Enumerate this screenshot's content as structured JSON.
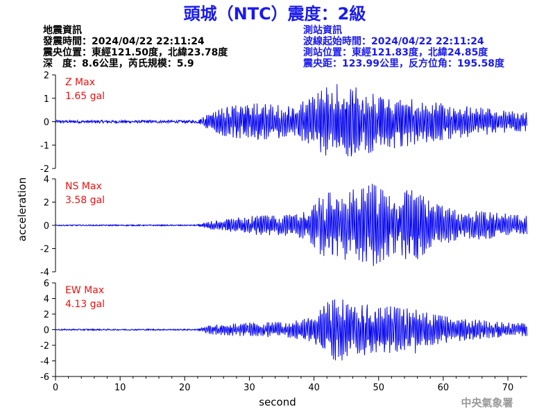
{
  "header": {
    "title": "頭城（NTC）震度：2級",
    "quake": {
      "heading": "地震資訊",
      "time": "發震時間：2024/04/22 22:11:24",
      "location": "震央位置：東經121.50度，北緯23.78度",
      "depth_magnitude": "深　度：8.6公里，芮氏規模：5.9"
    },
    "station": {
      "heading": "測站資訊",
      "onset": "波線起始時間：2024/04/22 22:11:24",
      "location": "測站位置：東經121.83度，北緯24.85度",
      "distance": "震央距：123.99公里，反方位角：195.58度"
    }
  },
  "footer": {
    "agency": "中央氣象署"
  },
  "colors": {
    "title": "#1a1aee",
    "trace": "#0000ee",
    "label": "#ee1111",
    "axis": "#000000"
  },
  "chart_data": [
    {
      "type": "line",
      "name": "Z",
      "max_label": "Z Max",
      "max_value": "1.65 gal",
      "xlim": [
        0,
        73
      ],
      "ylim": [
        -2,
        2
      ],
      "xticks": [
        0,
        10,
        20,
        30,
        40,
        50,
        60,
        70
      ],
      "yticks": [
        -2,
        -1,
        0,
        1,
        2
      ],
      "xlabel": "",
      "ylabel": "",
      "envelope": {
        "t": [
          0,
          22,
          25,
          30,
          35,
          39,
          41,
          43,
          45,
          47,
          49,
          51,
          53,
          55,
          58,
          62,
          66,
          70,
          73
        ],
        "amp": [
          0.06,
          0.06,
          0.55,
          0.8,
          0.7,
          0.9,
          1.3,
          1.65,
          1.5,
          1.45,
          1.3,
          1.1,
          1.15,
          1.0,
          0.85,
          0.7,
          0.6,
          0.45,
          0.4
        ]
      }
    },
    {
      "type": "line",
      "name": "NS",
      "max_label": "NS Max",
      "max_value": "3.58 gal",
      "xlim": [
        0,
        73
      ],
      "ylim": [
        -4,
        4
      ],
      "xticks": [
        0,
        10,
        20,
        30,
        40,
        50,
        60,
        70
      ],
      "yticks": [
        -4,
        -2,
        0,
        2,
        4
      ],
      "xlabel": "",
      "ylabel": "acceleration",
      "envelope": {
        "t": [
          0,
          22,
          24,
          30,
          36,
          39,
          41,
          43,
          45,
          47,
          49,
          51,
          53,
          55,
          58,
          62,
          66,
          70,
          73
        ],
        "amp": [
          0.05,
          0.05,
          0.35,
          0.8,
          0.9,
          1.2,
          2.5,
          3.0,
          3.2,
          3.0,
          3.58,
          2.9,
          2.2,
          3.4,
          2.0,
          1.3,
          1.2,
          1.0,
          0.8
        ]
      }
    },
    {
      "type": "line",
      "name": "EW",
      "max_label": "EW Max",
      "max_value": "4.13 gal",
      "xlim": [
        0,
        73
      ],
      "ylim": [
        -6,
        6
      ],
      "xticks": [
        0,
        10,
        20,
        30,
        40,
        50,
        60,
        70
      ],
      "yticks": [
        -6,
        -4,
        -2,
        0,
        2,
        4,
        6
      ],
      "xlabel": "second",
      "ylabel": "",
      "envelope": {
        "t": [
          0,
          22,
          24,
          30,
          36,
          40,
          42,
          44,
          46,
          48,
          50,
          52,
          54,
          56,
          58,
          62,
          66,
          70,
          73
        ],
        "amp": [
          0.08,
          0.08,
          0.6,
          0.9,
          1.0,
          1.6,
          3.5,
          4.13,
          3.0,
          3.3,
          2.8,
          3.0,
          2.6,
          3.2,
          2.0,
          1.5,
          1.2,
          0.9,
          0.8
        ]
      }
    }
  ]
}
